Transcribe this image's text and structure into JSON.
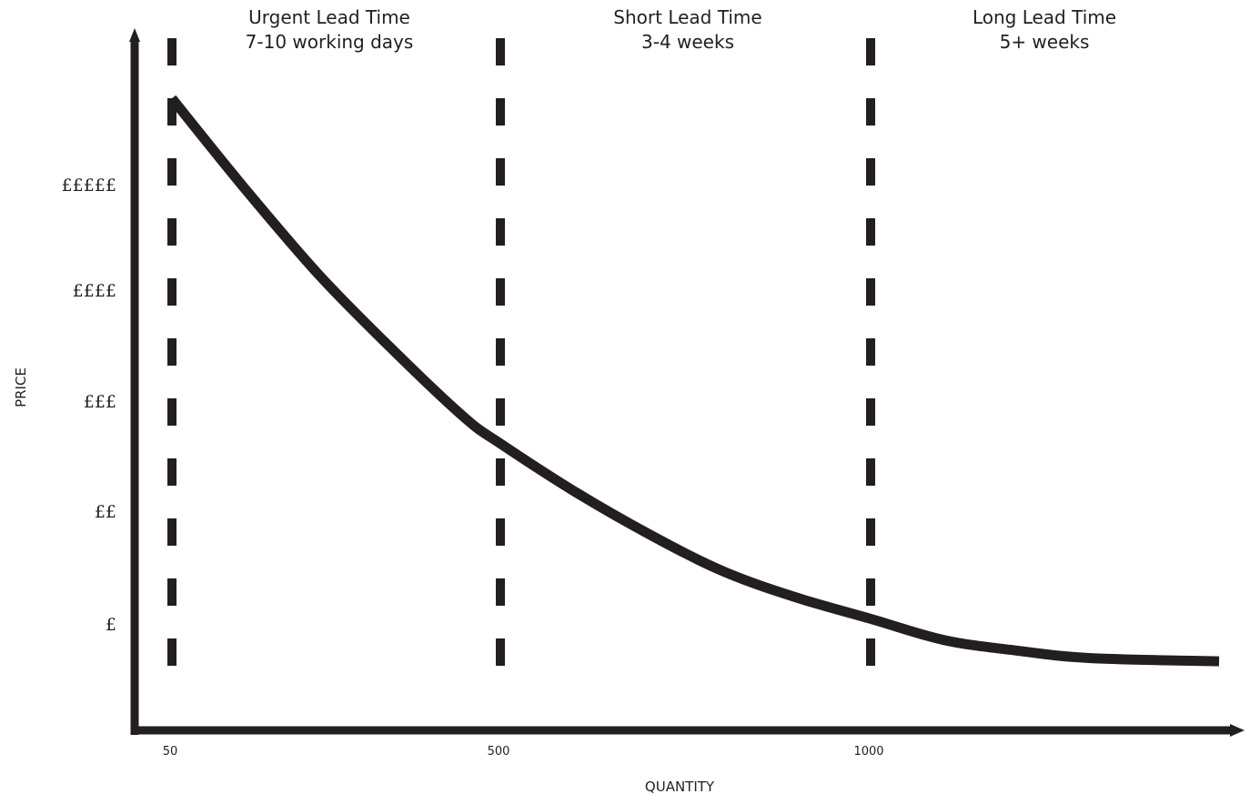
{
  "chart_data": {
    "type": "line",
    "xlabel": "QUANTITY",
    "ylabel": "PRICE",
    "x_ticks": [
      "50",
      "500",
      "1000"
    ],
    "y_ticks": [
      "£",
      "££",
      "£££",
      "££££",
      "£££££"
    ],
    "zones": [
      {
        "boundary_x": 50,
        "line1": "Urgent Lead Time",
        "line2": "7-10 working days"
      },
      {
        "boundary_x": 500,
        "line1": "Short Lead Time",
        "line2": "3-4 weeks"
      },
      {
        "boundary_x": 1000,
        "line1": "Long Lead Time",
        "line2": "5+ weeks"
      }
    ],
    "series": [
      {
        "x": [
          50,
          150,
          250,
          350,
          450,
          500,
          600,
          700,
          800,
          900,
          1000,
          1100,
          1200,
          1300,
          1475
        ],
        "y": [
          5.95,
          5.1,
          4.3,
          3.6,
          2.95,
          2.7,
          2.25,
          1.85,
          1.5,
          1.25,
          1.05,
          0.85,
          0.75,
          0.68,
          0.65
        ]
      }
    ],
    "xlim": [
      0,
      1475
    ],
    "ylim": [
      0,
      6.5
    ],
    "grid": false,
    "colors": {
      "ink": "#231f20",
      "background": "#ffffff"
    }
  }
}
